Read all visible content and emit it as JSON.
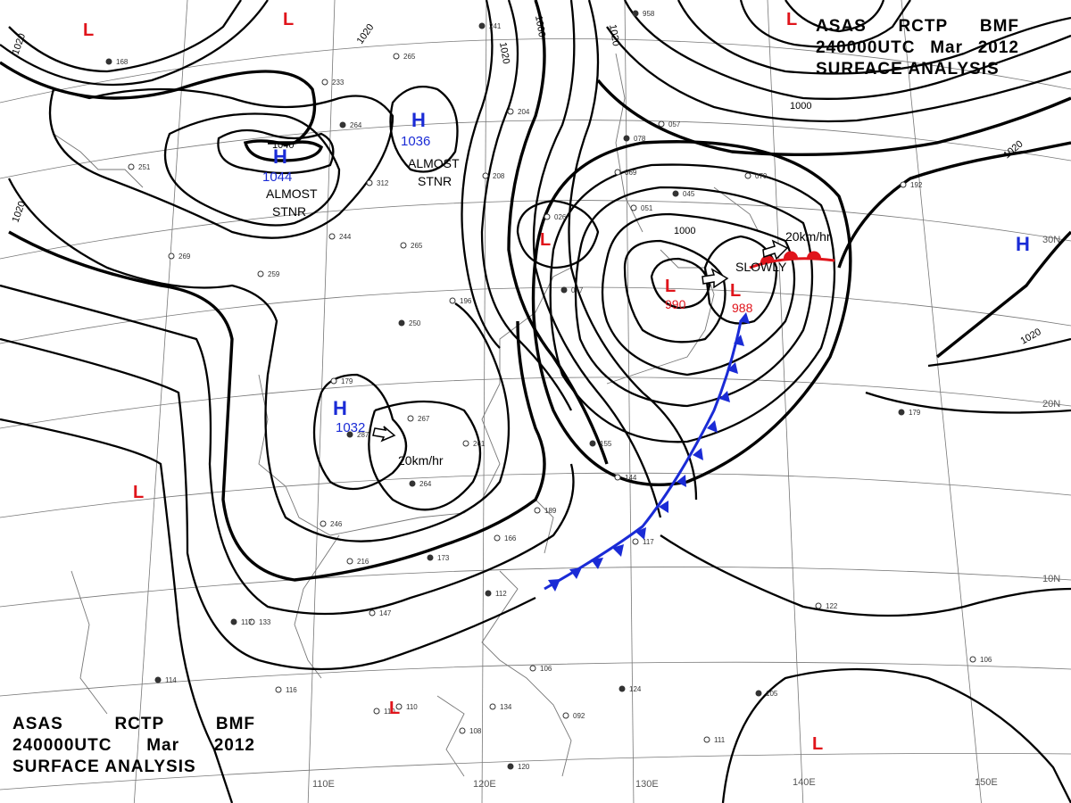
{
  "title": {
    "line1": [
      "ASAS",
      "RCTP",
      "BMF"
    ],
    "line2": [
      "240000UTC",
      "Mar",
      "2012"
    ],
    "line3": "SURFACE ANALYSIS"
  },
  "grid_labels": {
    "longitude": [
      "110E",
      "120E",
      "130E",
      "140E",
      "150E"
    ],
    "latitude": [
      "30N",
      "20N",
      "10N"
    ]
  },
  "isobar_labels": [
    "1020",
    "1020",
    "1020",
    "1020",
    "1020",
    "1000",
    "1000",
    "1020",
    "1000",
    "1020"
  ],
  "high_centers": [
    {
      "symbol": "H",
      "value": "1044",
      "inner_label": "1040",
      "note": [
        "ALMOST",
        "STNR"
      ]
    },
    {
      "symbol": "H",
      "value": "1036",
      "note": [
        "ALMOST",
        "STNR"
      ]
    },
    {
      "symbol": "H",
      "value": "1032",
      "motion": "20km/hr"
    },
    {
      "symbol": "H",
      "value": ""
    }
  ],
  "low_centers": [
    {
      "symbol": "L",
      "value": "990"
    },
    {
      "symbol": "L",
      "value": "988",
      "motion": "SLOWLY"
    },
    {
      "symbol": "L",
      "value": ""
    },
    {
      "symbol": "L",
      "value": ""
    },
    {
      "symbol": "L",
      "value": ""
    },
    {
      "symbol": "L",
      "value": ""
    },
    {
      "symbol": "L",
      "value": ""
    },
    {
      "symbol": "L",
      "value": ""
    }
  ],
  "front_motion": "20km/hr",
  "colors": {
    "high": "#1a2bd6",
    "low": "#e0141b",
    "cold_front": "#1a2bd6",
    "warm_front": "#e0141b",
    "isobar": "#000000"
  },
  "station_plots": [
    {
      "text": "168"
    },
    {
      "text": "233"
    },
    {
      "text": "265"
    },
    {
      "text": "241"
    },
    {
      "text": "251"
    },
    {
      "text": "312"
    },
    {
      "text": "264"
    },
    {
      "text": "244"
    },
    {
      "text": "265"
    },
    {
      "text": "250"
    },
    {
      "text": "196"
    },
    {
      "text": "179"
    },
    {
      "text": "287"
    },
    {
      "text": "267"
    },
    {
      "text": "261"
    },
    {
      "text": "264"
    },
    {
      "text": "246"
    },
    {
      "text": "216"
    },
    {
      "text": "173"
    },
    {
      "text": "166"
    },
    {
      "text": "189"
    },
    {
      "text": "155"
    },
    {
      "text": "144"
    },
    {
      "text": "117"
    },
    {
      "text": "112"
    },
    {
      "text": "134"
    },
    {
      "text": "106"
    },
    {
      "text": "124"
    },
    {
      "text": "092"
    },
    {
      "text": "108"
    },
    {
      "text": "120"
    },
    {
      "text": "110"
    },
    {
      "text": "116"
    },
    {
      "text": "114"
    },
    {
      "text": "133"
    },
    {
      "text": "147"
    },
    {
      "text": "117"
    },
    {
      "text": "110"
    },
    {
      "text": "122"
    },
    {
      "text": "105"
    },
    {
      "text": "111"
    },
    {
      "text": "106"
    },
    {
      "text": "179"
    },
    {
      "text": "192"
    },
    {
      "text": "070"
    },
    {
      "text": "045"
    },
    {
      "text": "051"
    },
    {
      "text": "057"
    },
    {
      "text": "078"
    },
    {
      "text": "069"
    },
    {
      "text": "026"
    },
    {
      "text": "047"
    },
    {
      "text": "204"
    },
    {
      "text": "208"
    },
    {
      "text": "958"
    },
    {
      "text": "269"
    },
    {
      "text": "259"
    }
  ]
}
